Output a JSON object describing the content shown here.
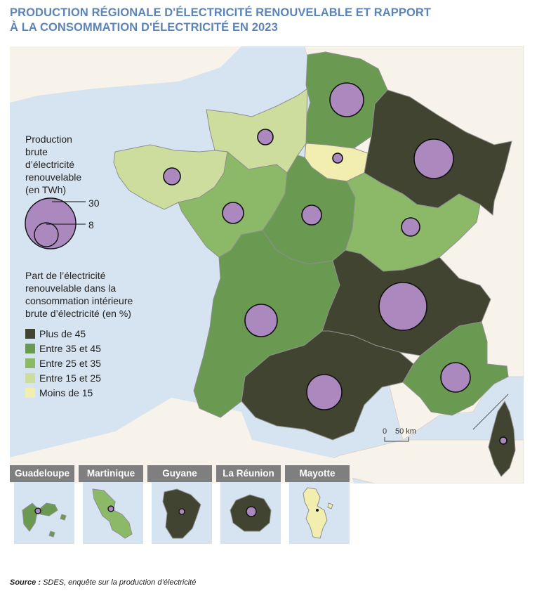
{
  "title": {
    "line1": "PRODUCTION RÉGIONALE D'ÉLECTRICITÉ RENOUVELABLE ET RAPPORT",
    "line2": "À LA CONSOMMATION D'ÉLECTRICITÉ EN 2023"
  },
  "legend_size": {
    "heading": [
      "Production",
      "brute",
      "d’électricité",
      "renouvelable",
      "(en TWh)"
    ],
    "values": [
      "30",
      "8"
    ]
  },
  "legend_color": {
    "heading": [
      "Part de l’électricité",
      "renouvelable dans la",
      "consommation intérieure",
      "brute d’électricité (en %)"
    ],
    "classes": [
      {
        "label": "Plus de 45",
        "color": "#414431"
      },
      {
        "label": "Entre 35 et 45",
        "color": "#6a9a51"
      },
      {
        "label": "Entre 25 et 35",
        "color": "#8cb968"
      },
      {
        "label": "Entre 15 et 25",
        "color": "#cddd9d"
      },
      {
        "label": "Moins de 15",
        "color": "#f1eeb0"
      }
    ]
  },
  "scale": {
    "zero": "0",
    "label": "50 km"
  },
  "bubble_color": "#ab88bd",
  "overseas": [
    {
      "name": "Guadeloupe",
      "class": 1
    },
    {
      "name": "Martinique",
      "class": 2
    },
    {
      "name": "Guyane",
      "class": 0
    },
    {
      "name": "La Réunion",
      "class": 0
    },
    {
      "name": "Mayotte",
      "class": 4
    }
  ],
  "source": {
    "label": "Source :",
    "text": " SDES, enquête sur la production d’électricité"
  }
}
